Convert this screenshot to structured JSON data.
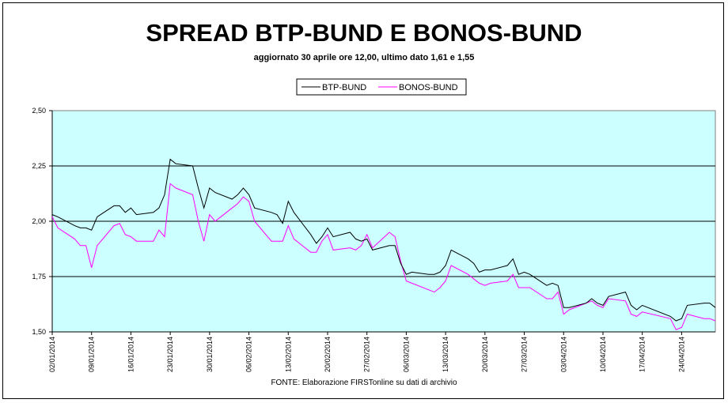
{
  "chart_data": {
    "type": "line",
    "title": "SPREAD BTP-BUND E BONOS-BUND",
    "subtitle": "aggiornato 30 aprile ore 12,00, ultimo dato 1,61 e 1,55",
    "source": "FONTE: Elaborazione FIRSTonline su dati di archivio",
    "xlabel": "",
    "ylabel": "",
    "ylim": [
      1.5,
      2.5
    ],
    "yticks": [
      "2,50",
      "2,25",
      "2,00",
      "1,75",
      "1,50"
    ],
    "yticks_values": [
      2.5,
      2.25,
      2.0,
      1.75,
      1.5
    ],
    "xlim": [
      "2014-01-02",
      "2014-04-30"
    ],
    "xticks": [
      "02/01/2014",
      "09/01/2014",
      "16/01/2014",
      "23/01/2014",
      "30/01/2014",
      "06/02/2014",
      "13/02/2014",
      "20/02/2014",
      "27/02/2014",
      "06/03/2014",
      "13/03/2014",
      "20/03/2014",
      "27/03/2014",
      "03/04/2014",
      "10/04/2014",
      "17/04/2014",
      "24/04/2014"
    ],
    "grid": "horizontal",
    "legend_position": "top-center",
    "background_color": "#ccffff",
    "series": [
      {
        "name": "BTP-BUND",
        "color": "#000000",
        "points": [
          [
            "2014-01-02",
            2.03
          ],
          [
            "2014-01-03",
            2.02
          ],
          [
            "2014-01-06",
            1.98
          ],
          [
            "2014-01-07",
            1.97
          ],
          [
            "2014-01-08",
            1.97
          ],
          [
            "2014-01-09",
            1.96
          ],
          [
            "2014-01-10",
            2.02
          ],
          [
            "2014-01-13",
            2.07
          ],
          [
            "2014-01-14",
            2.07
          ],
          [
            "2014-01-15",
            2.04
          ],
          [
            "2014-01-16",
            2.06
          ],
          [
            "2014-01-17",
            2.03
          ],
          [
            "2014-01-20",
            2.04
          ],
          [
            "2014-01-21",
            2.06
          ],
          [
            "2014-01-22",
            2.12
          ],
          [
            "2014-01-23",
            2.28
          ],
          [
            "2014-01-24",
            2.26
          ],
          [
            "2014-01-27",
            2.25
          ],
          [
            "2014-01-28",
            2.15
          ],
          [
            "2014-01-29",
            2.06
          ],
          [
            "2014-01-30",
            2.15
          ],
          [
            "2014-01-31",
            2.13
          ],
          [
            "2014-02-03",
            2.1
          ],
          [
            "2014-02-04",
            2.12
          ],
          [
            "2014-02-05",
            2.15
          ],
          [
            "2014-02-06",
            2.12
          ],
          [
            "2014-02-07",
            2.06
          ],
          [
            "2014-02-10",
            2.04
          ],
          [
            "2014-02-11",
            2.03
          ],
          [
            "2014-02-12",
            1.99
          ],
          [
            "2014-02-13",
            2.09
          ],
          [
            "2014-02-14",
            2.04
          ],
          [
            "2014-02-17",
            1.94
          ],
          [
            "2014-02-18",
            1.9
          ],
          [
            "2014-02-19",
            1.93
          ],
          [
            "2014-02-20",
            1.97
          ],
          [
            "2014-02-21",
            1.93
          ],
          [
            "2014-02-24",
            1.95
          ],
          [
            "2014-02-25",
            1.92
          ],
          [
            "2014-02-26",
            1.91
          ],
          [
            "2014-02-27",
            1.92
          ],
          [
            "2014-02-28",
            1.87
          ],
          [
            "2014-03-03",
            1.89
          ],
          [
            "2014-03-04",
            1.89
          ],
          [
            "2014-03-05",
            1.81
          ],
          [
            "2014-03-06",
            1.76
          ],
          [
            "2014-03-07",
            1.77
          ],
          [
            "2014-03-10",
            1.76
          ],
          [
            "2014-03-11",
            1.76
          ],
          [
            "2014-03-12",
            1.77
          ],
          [
            "2014-03-13",
            1.8
          ],
          [
            "2014-03-14",
            1.87
          ],
          [
            "2014-03-17",
            1.83
          ],
          [
            "2014-03-18",
            1.81
          ],
          [
            "2014-03-19",
            1.77
          ],
          [
            "2014-03-20",
            1.78
          ],
          [
            "2014-03-21",
            1.78
          ],
          [
            "2014-03-24",
            1.8
          ],
          [
            "2014-03-25",
            1.83
          ],
          [
            "2014-03-26",
            1.76
          ],
          [
            "2014-03-27",
            1.77
          ],
          [
            "2014-03-28",
            1.76
          ],
          [
            "2014-03-31",
            1.71
          ],
          [
            "2014-04-01",
            1.72
          ],
          [
            "2014-04-02",
            1.71
          ],
          [
            "2014-04-03",
            1.61
          ],
          [
            "2014-04-04",
            1.61
          ],
          [
            "2014-04-07",
            1.63
          ],
          [
            "2014-04-08",
            1.65
          ],
          [
            "2014-04-09",
            1.63
          ],
          [
            "2014-04-10",
            1.62
          ],
          [
            "2014-04-11",
            1.66
          ],
          [
            "2014-04-14",
            1.68
          ],
          [
            "2014-04-15",
            1.62
          ],
          [
            "2014-04-16",
            1.6
          ],
          [
            "2014-04-17",
            1.62
          ],
          [
            "2014-04-22",
            1.57
          ],
          [
            "2014-04-23",
            1.55
          ],
          [
            "2014-04-24",
            1.56
          ],
          [
            "2014-04-25",
            1.62
          ],
          [
            "2014-04-28",
            1.63
          ],
          [
            "2014-04-29",
            1.63
          ],
          [
            "2014-04-30",
            1.61
          ]
        ]
      },
      {
        "name": "BONOS-BUND",
        "color": "#ff00ff",
        "points": [
          [
            "2014-01-02",
            2.02
          ],
          [
            "2014-01-03",
            1.97
          ],
          [
            "2014-01-06",
            1.92
          ],
          [
            "2014-01-07",
            1.89
          ],
          [
            "2014-01-08",
            1.89
          ],
          [
            "2014-01-09",
            1.79
          ],
          [
            "2014-01-10",
            1.89
          ],
          [
            "2014-01-13",
            1.98
          ],
          [
            "2014-01-14",
            1.99
          ],
          [
            "2014-01-15",
            1.94
          ],
          [
            "2014-01-16",
            1.93
          ],
          [
            "2014-01-17",
            1.91
          ],
          [
            "2014-01-20",
            1.91
          ],
          [
            "2014-01-21",
            1.96
          ],
          [
            "2014-01-22",
            1.93
          ],
          [
            "2014-01-23",
            2.17
          ],
          [
            "2014-01-24",
            2.15
          ],
          [
            "2014-01-27",
            2.12
          ],
          [
            "2014-01-28",
            2.0
          ],
          [
            "2014-01-29",
            1.91
          ],
          [
            "2014-01-30",
            2.03
          ],
          [
            "2014-01-31",
            2.0
          ],
          [
            "2014-02-03",
            2.06
          ],
          [
            "2014-02-04",
            2.08
          ],
          [
            "2014-02-05",
            2.11
          ],
          [
            "2014-02-06",
            2.09
          ],
          [
            "2014-02-07",
            2.0
          ],
          [
            "2014-02-10",
            1.91
          ],
          [
            "2014-02-11",
            1.91
          ],
          [
            "2014-02-12",
            1.91
          ],
          [
            "2014-02-13",
            1.98
          ],
          [
            "2014-02-14",
            1.92
          ],
          [
            "2014-02-17",
            1.86
          ],
          [
            "2014-02-18",
            1.86
          ],
          [
            "2014-02-19",
            1.91
          ],
          [
            "2014-02-20",
            1.94
          ],
          [
            "2014-02-21",
            1.87
          ],
          [
            "2014-02-24",
            1.88
          ],
          [
            "2014-02-25",
            1.87
          ],
          [
            "2014-02-26",
            1.89
          ],
          [
            "2014-02-27",
            1.94
          ],
          [
            "2014-02-28",
            1.88
          ],
          [
            "2014-03-03",
            1.95
          ],
          [
            "2014-03-04",
            1.93
          ],
          [
            "2014-03-05",
            1.82
          ],
          [
            "2014-03-06",
            1.73
          ],
          [
            "2014-03-07",
            1.72
          ],
          [
            "2014-03-10",
            1.69
          ],
          [
            "2014-03-11",
            1.68
          ],
          [
            "2014-03-12",
            1.7
          ],
          [
            "2014-03-13",
            1.73
          ],
          [
            "2014-03-14",
            1.8
          ],
          [
            "2014-03-17",
            1.76
          ],
          [
            "2014-03-18",
            1.74
          ],
          [
            "2014-03-19",
            1.72
          ],
          [
            "2014-03-20",
            1.71
          ],
          [
            "2014-03-21",
            1.72
          ],
          [
            "2014-03-24",
            1.73
          ],
          [
            "2014-03-25",
            1.76
          ],
          [
            "2014-03-26",
            1.7
          ],
          [
            "2014-03-27",
            1.7
          ],
          [
            "2014-03-28",
            1.7
          ],
          [
            "2014-03-31",
            1.65
          ],
          [
            "2014-04-01",
            1.65
          ],
          [
            "2014-04-02",
            1.68
          ],
          [
            "2014-04-03",
            1.58
          ],
          [
            "2014-04-04",
            1.6
          ],
          [
            "2014-04-07",
            1.63
          ],
          [
            "2014-04-08",
            1.64
          ],
          [
            "2014-04-09",
            1.62
          ],
          [
            "2014-04-10",
            1.61
          ],
          [
            "2014-04-11",
            1.65
          ],
          [
            "2014-04-14",
            1.64
          ],
          [
            "2014-04-15",
            1.58
          ],
          [
            "2014-04-16",
            1.57
          ],
          [
            "2014-04-17",
            1.59
          ],
          [
            "2014-04-22",
            1.56
          ],
          [
            "2014-04-23",
            1.51
          ],
          [
            "2014-04-24",
            1.52
          ],
          [
            "2014-04-25",
            1.58
          ],
          [
            "2014-04-28",
            1.56
          ],
          [
            "2014-04-29",
            1.56
          ],
          [
            "2014-04-30",
            1.55
          ]
        ]
      }
    ]
  }
}
